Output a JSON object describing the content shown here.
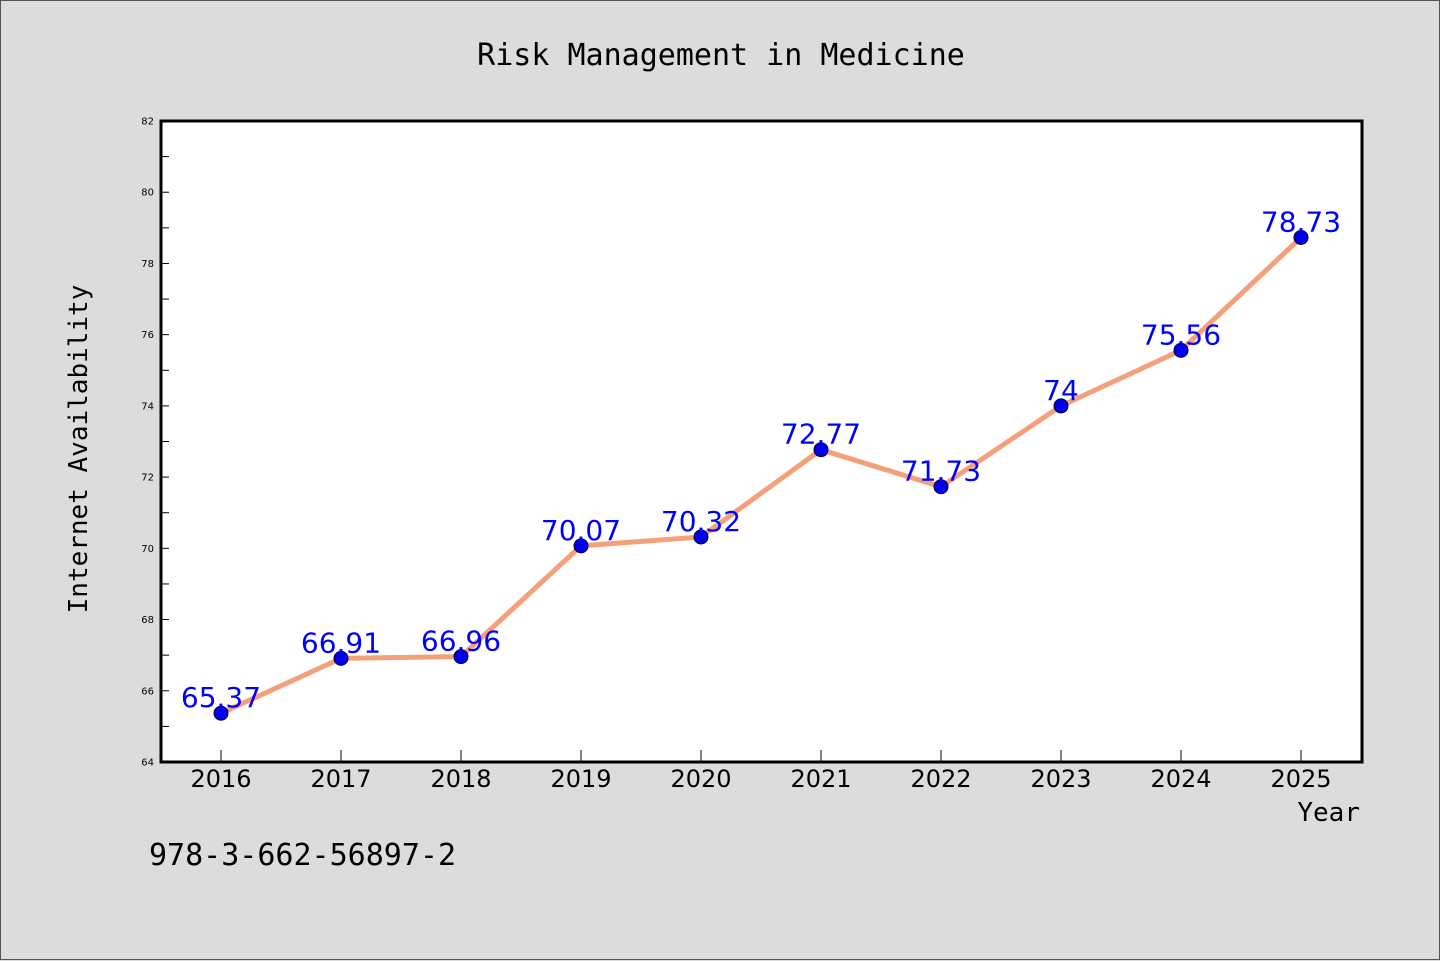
{
  "chart_data": {
    "type": "line",
    "title": "Risk Management in Medicine",
    "xlabel": "Year",
    "ylabel": "Internet Availability",
    "categories": [
      "2016",
      "2017",
      "2018",
      "2019",
      "2020",
      "2021",
      "2022",
      "2023",
      "2024",
      "2025"
    ],
    "series": [
      {
        "values": [
          65.37,
          66.91,
          66.96,
          70.07,
          70.32,
          72.77,
          71.73,
          74,
          75.56,
          78.73
        ]
      }
    ],
    "data_labels": [
      "65.37",
      "66.91",
      "66.96",
      "70.07",
      "70.32",
      "72.77",
      "71.73",
      "74",
      "75.56",
      "78.73"
    ],
    "ylim": [
      64,
      82
    ],
    "yticks": [
      "64",
      "66",
      "68",
      "70",
      "72",
      "74",
      "76",
      "78",
      "80",
      "82"
    ],
    "grid": false,
    "colors": {
      "line": "#f4a07a",
      "marker": "#0000ee",
      "data_label": "#0000ff",
      "plot_background": "#ffffff",
      "figure_background": "#dcdcdc"
    }
  },
  "footer": {
    "isbn": "978-3-662-56897-2"
  }
}
